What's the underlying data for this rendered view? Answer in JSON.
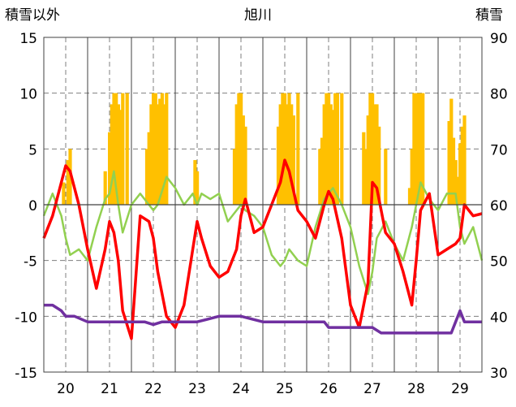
{
  "chart_data": {
    "type": "line",
    "title": "旭川",
    "left_axis_label": "積雪以外",
    "right_axis_label": "積雪",
    "left_ylim": [
      -15,
      15
    ],
    "left_ticks": [
      "15",
      "10",
      "5",
      "0",
      "-5",
      "-10",
      "-15"
    ],
    "right_ylim": [
      30,
      90
    ],
    "right_ticks": [
      "90",
      "80",
      "70",
      "60",
      "50",
      "40",
      "30"
    ],
    "x_categories": [
      "20",
      "21",
      "22",
      "23",
      "24",
      "25",
      "26",
      "27",
      "28",
      "29"
    ],
    "grid": true,
    "colors": {
      "temperature": "#ff0000",
      "wind": "#92d050",
      "snowfall": "#ffc000",
      "snow_depth": "#7030a0",
      "precip": "#2e75b6"
    },
    "series": [
      {
        "key": "temperature",
        "axis": "left",
        "x": [
          19.5,
          19.7,
          19.9,
          20.0,
          20.1,
          20.3,
          20.5,
          20.7,
          20.9,
          21.0,
          21.1,
          21.2,
          21.3,
          21.5,
          21.7,
          21.9,
          22.0,
          22.1,
          22.3,
          22.5,
          22.7,
          22.9,
          23.0,
          23.1,
          23.3,
          23.5,
          23.7,
          23.9,
          24.0,
          24.1,
          24.3,
          24.5,
          24.7,
          24.9,
          25.0,
          25.1,
          25.3,
          25.5,
          25.7,
          25.9,
          26.0,
          26.1,
          26.3,
          26.5,
          26.7,
          26.9,
          27.0,
          27.1,
          27.3,
          27.5,
          27.7,
          27.9,
          28.0,
          28.1,
          28.3,
          28.5,
          28.7,
          28.9,
          29.0,
          29.1,
          29.3,
          29.5
        ],
        "values": [
          -3.0,
          -1.0,
          2.0,
          3.5,
          3.0,
          0.0,
          -4.0,
          -7.5,
          -4.0,
          -1.5,
          -2.5,
          -5.0,
          -9.5,
          -12.0,
          -1.0,
          -1.5,
          -3.0,
          -6.0,
          -10.0,
          -11.0,
          -9.0,
          -4.0,
          -1.5,
          -3.0,
          -5.5,
          -6.5,
          -6.0,
          -4.0,
          -1.0,
          0.5,
          -2.5,
          -2.0,
          0.0,
          2.0,
          4.0,
          3.0,
          -0.5,
          -1.5,
          -3.0,
          0.0,
          1.2,
          0.5,
          -3.0,
          -9.0,
          -11.0,
          -7.0,
          2.0,
          1.5,
          -2.5,
          -3.5,
          -6.0,
          -9.0,
          -5.0,
          -0.5,
          1.0,
          -4.5,
          -4.0,
          -3.5,
          -3.0,
          0.0,
          -1.0,
          -0.8
        ]
      },
      {
        "key": "wind",
        "axis": "left",
        "x": [
          19.5,
          19.7,
          19.9,
          20.0,
          20.1,
          20.3,
          20.5,
          20.7,
          20.9,
          21.0,
          21.1,
          21.2,
          21.3,
          21.5,
          21.7,
          21.9,
          22.0,
          22.1,
          22.3,
          22.5,
          22.7,
          22.9,
          23.0,
          23.1,
          23.3,
          23.5,
          23.7,
          23.9,
          24.0,
          24.1,
          24.3,
          24.5,
          24.7,
          24.9,
          25.0,
          25.1,
          25.3,
          25.5,
          25.7,
          25.9,
          26.0,
          26.1,
          26.3,
          26.5,
          26.7,
          26.9,
          27.0,
          27.1,
          27.3,
          27.5,
          27.7,
          27.9,
          28.0,
          28.1,
          28.3,
          28.5,
          28.7,
          28.9,
          29.0,
          29.1,
          29.3,
          29.5
        ],
        "values": [
          -1.0,
          1.0,
          -1.0,
          -3.0,
          -4.5,
          -4.0,
          -5.0,
          -2.0,
          0.5,
          1.0,
          3.0,
          0.0,
          -2.5,
          0.0,
          1.0,
          0.0,
          -0.5,
          0.0,
          2.5,
          1.5,
          0.0,
          1.0,
          0.0,
          1.0,
          0.5,
          1.0,
          -1.5,
          -0.5,
          0.0,
          -0.5,
          -1.0,
          -2.0,
          -4.5,
          -5.5,
          -5.0,
          -4.0,
          -5.0,
          -5.5,
          -2.0,
          0.5,
          1.0,
          1.5,
          0.0,
          -2.0,
          -5.5,
          -8.0,
          -6.0,
          -3.0,
          -1.5,
          -3.5,
          -5.0,
          -2.0,
          0.0,
          2.0,
          0.5,
          -0.5,
          1.0,
          1.0,
          -2.0,
          -3.5,
          -2.0,
          -5.0
        ]
      },
      {
        "key": "snow_depth",
        "axis": "right",
        "x": [
          19.5,
          19.7,
          19.9,
          20.0,
          20.2,
          20.5,
          21.0,
          21.5,
          21.8,
          22.0,
          22.2,
          22.5,
          23.0,
          23.5,
          24.0,
          24.5,
          25.0,
          25.5,
          25.9,
          26.0,
          26.5,
          27.0,
          27.2,
          27.5,
          28.0,
          28.5,
          28.8,
          28.9,
          29.0,
          29.1,
          29.3,
          29.5
        ],
        "values": [
          42,
          42,
          41,
          40,
          40,
          39,
          39,
          39,
          39,
          38.5,
          39,
          39,
          39,
          40,
          40,
          39,
          39,
          39,
          39,
          38,
          38,
          38,
          37,
          37,
          37,
          37,
          37,
          39,
          41,
          39,
          39,
          39
        ]
      },
      {
        "key": "snowfall",
        "axis": "right",
        "x": [
          19.95,
          20.05,
          20.1,
          20.9,
          21.0,
          21.05,
          21.1,
          21.15,
          21.2,
          21.25,
          21.3,
          21.4,
          21.85,
          21.9,
          21.95,
          22.0,
          22.05,
          22.1,
          22.15,
          22.2,
          22.25,
          22.3,
          22.95,
          23.0,
          23.85,
          23.9,
          23.95,
          24.0,
          24.05,
          24.1,
          24.85,
          24.9,
          24.95,
          25.0,
          25.05,
          25.1,
          25.15,
          25.2,
          25.3,
          25.8,
          25.85,
          25.9,
          25.95,
          26.0,
          26.05,
          26.1,
          26.15,
          26.2,
          26.3,
          26.8,
          26.85,
          26.9,
          26.95,
          27.0,
          27.05,
          27.1,
          27.15,
          27.3,
          27.85,
          27.9,
          27.95,
          28.0,
          28.05,
          28.1,
          28.15,
          28.75,
          28.8,
          28.85,
          28.9,
          28.95,
          29.0,
          29.05,
          29.1
        ],
        "values": [
          64,
          68,
          70,
          66,
          73,
          78,
          80,
          80,
          78,
          77,
          80,
          80,
          70,
          73,
          78,
          80,
          80,
          78,
          79,
          80,
          78,
          80,
          68,
          66,
          70,
          78,
          80,
          80,
          76,
          74,
          74,
          78,
          80,
          80,
          78,
          80,
          78,
          76,
          80,
          70,
          72,
          78,
          80,
          80,
          78,
          77,
          80,
          80,
          80,
          73,
          70,
          76,
          80,
          80,
          78,
          78,
          74,
          70,
          63,
          70,
          80,
          80,
          80,
          80,
          80,
          75,
          79,
          72,
          68,
          65,
          71,
          74,
          76
        ]
      }
    ]
  }
}
